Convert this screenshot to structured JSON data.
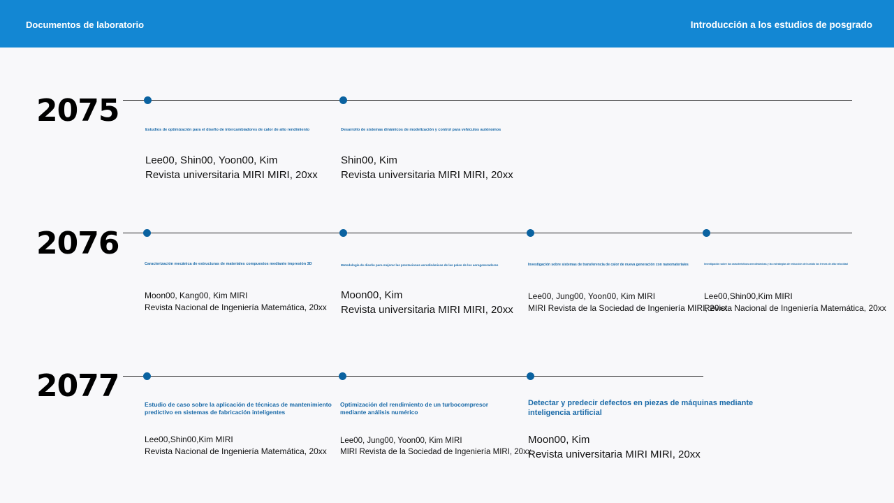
{
  "header": {
    "left": "Documentos de laboratorio",
    "right": "Introducción a los estudios de posgrado"
  },
  "rows": [
    {
      "year": "2075",
      "items": [
        {
          "title": "Estudios de optimización para el diseño de intercambiadores de calor de alto rendimiento",
          "authors": "Lee00, Shin00, Yoon00, Kim",
          "venue": "Revista universitaria MIRI MIRI, 20xx"
        },
        {
          "title": "Desarrollo de sistemas dinámicos de modelización y control para vehículos autónomos",
          "authors": "Shin00, Kim",
          "venue": "Revista universitaria MIRI MIRI, 20xx"
        }
      ]
    },
    {
      "year": "2076",
      "items": [
        {
          "title": "Caracterización mecánica de estructuras de materiales compuestos mediante impresión 3D",
          "authors": "Moon00, Kang00, Kim MIRI",
          "venue": "Revista Nacional de Ingeniería Matemática, 20xx"
        },
        {
          "title": "Metodología de diseño para mejorar las prestaciones aerodinámicas de las palas de los aerogeneradores",
          "authors": "Moon00, Kim",
          "venue": "Revista universitaria MIRI MIRI, 20xx"
        },
        {
          "title": "Investigación sobre sistemas de transferencia de calor de nueva generación con nanomateriales",
          "authors": "Lee00, Jung00, Yoon00, Kim MIRI",
          "venue": "MIRI Revista de la Sociedad de Ingeniería MIRI, 20xx"
        },
        {
          "title": "Investigación sobre las características aerodinámicas y las estrategias de reducción del sonido los trenes de alta velocidad",
          "authors": "Lee00,Shin00,Kim MIRI",
          "venue": "Revista Nacional de Ingeniería Matemática, 20xx"
        }
      ]
    },
    {
      "year": "2077",
      "items": [
        {
          "title": "Estudio de caso sobre la aplicación de técnicas de mantenimiento predictivo en sistemas de fabricación inteligentes",
          "authors": "Lee00,Shin00,Kim MIRI",
          "venue": "Revista Nacional de Ingeniería Matemática, 20xx"
        },
        {
          "title": "Optimización del rendimiento de un turbocompresor mediante análisis numérico",
          "authors": "Lee00, Jung00, Yoon00, Kim MIRI",
          "venue": "MIRI Revista de la Sociedad de Ingeniería MIRI, 20xx"
        },
        {
          "title": "Detectar y predecir defectos en piezas de máquinas mediante inteligencia artificial",
          "authors": "Moon00, Kim",
          "venue": "Revista universitaria MIRI MIRI, 20xx"
        }
      ]
    }
  ]
}
